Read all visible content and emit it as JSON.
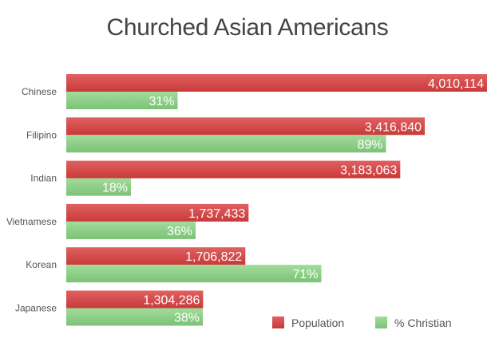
{
  "chart_data": {
    "type": "bar",
    "orientation": "horizontal",
    "title": "Churched Asian Americans",
    "xlabel": "",
    "ylabel": "",
    "categories": [
      "Chinese",
      "Filipino",
      "Indian",
      "Vietnamese",
      "Korean",
      "Japanese"
    ],
    "series": [
      {
        "name": "Population",
        "color": "#d64545",
        "values": [
          4010114,
          3416840,
          3183063,
          1737433,
          1706822,
          1304286
        ],
        "labels": [
          "4,010,114",
          "3,416,840",
          "3,183,063",
          "1,737,433",
          "1,706,822",
          "1,304,286"
        ]
      },
      {
        "name": "% Christian",
        "color": "#8ccf86",
        "values": [
          31,
          89,
          18,
          36,
          71,
          38
        ],
        "labels": [
          "31%",
          "89%",
          "18%",
          "36%",
          "71%",
          "38%"
        ]
      }
    ],
    "grid": false,
    "legend_position": "bottom-right"
  }
}
